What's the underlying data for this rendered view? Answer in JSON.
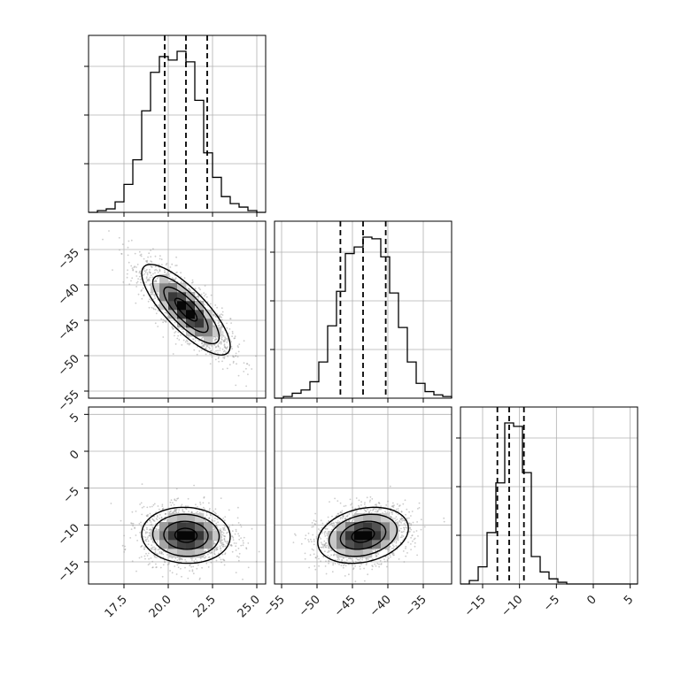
{
  "chart_data": {
    "type": "corner",
    "parameters": 3,
    "axes": {
      "p0": {
        "range": [
          15.5,
          25.5
        ],
        "ticks": [
          17.5,
          20.0,
          22.5,
          25.0
        ],
        "tick_labels": [
          "17.5",
          "20.0",
          "22.5",
          "25.0"
        ]
      },
      "p1": {
        "range": [
          -56,
          -31
        ],
        "ticks": [
          -55,
          -50,
          -45,
          -40,
          -35
        ],
        "tick_labels": [
          "−55",
          "−50",
          "−45",
          "−40",
          "−35"
        ]
      },
      "p2": {
        "range": [
          -18,
          6
        ],
        "ticks": [
          -15,
          -10,
          -5,
          0,
          5
        ],
        "tick_labels": [
          "−15",
          "−10",
          "−5",
          "0",
          "5"
        ]
      }
    },
    "grid": true,
    "histograms": [
      {
        "param": "p0",
        "bin_edges": [
          15.5,
          16.0,
          16.5,
          17.0,
          17.5,
          18.0,
          18.5,
          19.0,
          19.5,
          20.0,
          20.5,
          21.0,
          21.5,
          22.0,
          22.5,
          23.0,
          23.5,
          24.0,
          24.5,
          25.0,
          25.5
        ],
        "counts": [
          0.0,
          0.01,
          0.02,
          0.06,
          0.16,
          0.3,
          0.58,
          0.8,
          0.89,
          0.87,
          0.92,
          0.86,
          0.64,
          0.34,
          0.2,
          0.09,
          0.05,
          0.03,
          0.01,
          0.0
        ],
        "quantiles": [
          19.8,
          21.0,
          22.2
        ]
      },
      {
        "param": "p1",
        "bin_edges": [
          -56,
          -54.75,
          -53.5,
          -52.25,
          -51,
          -49.75,
          -48.5,
          -47.25,
          -46,
          -44.75,
          -43.5,
          -42.25,
          -41,
          -39.75,
          -38.5,
          -37.25,
          -36,
          -34.75,
          -33.5,
          -32.25,
          -31
        ],
        "counts": [
          0.0,
          0.01,
          0.03,
          0.05,
          0.1,
          0.22,
          0.44,
          0.65,
          0.88,
          0.92,
          0.98,
          0.97,
          0.86,
          0.64,
          0.43,
          0.22,
          0.09,
          0.04,
          0.02,
          0.01
        ],
        "quantiles": [
          -46.7,
          -43.5,
          -40.3
        ]
      },
      {
        "param": "p2",
        "bin_edges": [
          -18,
          -16.8,
          -15.6,
          -14.4,
          -13.2,
          -12,
          -10.8,
          -9.6,
          -8.4,
          -7.2,
          -6,
          -4.8,
          -3.6,
          -2.4,
          -1.2,
          0,
          1.2,
          2.4,
          3.6,
          4.8,
          6
        ],
        "counts": [
          0.0,
          0.02,
          0.1,
          0.3,
          0.59,
          0.94,
          0.92,
          0.65,
          0.16,
          0.07,
          0.03,
          0.01,
          0.0,
          0.0,
          0.0,
          0.0,
          0.0,
          0.0,
          0.0,
          0.0
        ],
        "quantiles": [
          -13.0,
          -11.4,
          -9.4
        ]
      }
    ],
    "density_2d": [
      {
        "x": "p0",
        "y": "p1",
        "mean": [
          21.0,
          -43.5
        ],
        "sd": [
          1.25,
          3.2
        ],
        "rho": -0.8
      },
      {
        "x": "p0",
        "y": "p2",
        "mean": [
          21.0,
          -11.4
        ],
        "sd": [
          1.25,
          1.9
        ],
        "rho": -0.05
      },
      {
        "x": "p1",
        "y": "p2",
        "mean": [
          -43.5,
          -11.4
        ],
        "sd": [
          3.2,
          1.9
        ],
        "rho": 0.25
      }
    ],
    "contour_levels_sigma": [
      0.5,
      1.0,
      1.5,
      2.0
    ]
  }
}
